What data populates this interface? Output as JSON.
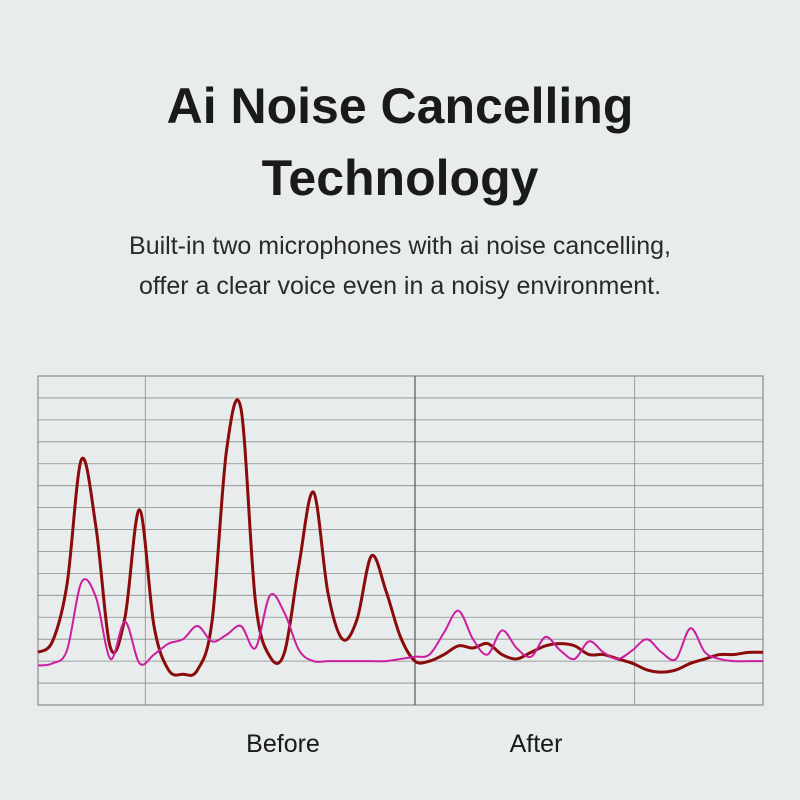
{
  "title_line1": "Ai Noise Cancelling",
  "title_line2": "Technology",
  "subtitle_line1": "Built-in two microphones with ai noise cancelling,",
  "subtitle_line2": "offer a clear voice even in a noisy environment.",
  "chart_data": {
    "type": "line",
    "title": "",
    "xlabel": "",
    "ylabel": "",
    "sections": [
      "Before",
      "After"
    ],
    "xlim": [
      0,
      100
    ],
    "ylim": [
      0,
      15
    ],
    "grid": true,
    "series": [
      {
        "color": "#8b0a0a",
        "x": [
          0,
          2,
          4,
          6,
          8,
          10,
          12,
          14,
          16,
          18,
          20,
          22,
          24,
          26,
          28,
          30,
          32,
          34,
          36,
          38,
          40,
          42,
          44,
          46,
          48,
          50,
          52,
          54,
          56,
          58,
          60,
          62,
          64,
          66,
          68,
          70,
          72,
          74,
          76,
          78,
          80,
          82,
          84,
          86,
          88,
          90,
          92,
          94,
          96,
          98,
          100
        ],
        "values": [
          2.4,
          2.9,
          5.5,
          11.2,
          8.1,
          2.6,
          4.0,
          8.9,
          3.6,
          1.6,
          1.4,
          1.6,
          3.8,
          11.6,
          13.5,
          4.7,
          2.2,
          2.4,
          6.4,
          9.7,
          5.1,
          3.0,
          3.9,
          6.8,
          5.2,
          3.1,
          2.0,
          2.0,
          2.3,
          2.7,
          2.6,
          2.8,
          2.3,
          2.1,
          2.4,
          2.7,
          2.8,
          2.7,
          2.3,
          2.3,
          2.1,
          1.9,
          1.6,
          1.5,
          1.6,
          1.9,
          2.1,
          2.3,
          2.3,
          2.4,
          2.4
        ]
      },
      {
        "color": "#cc1f9f",
        "x": [
          0,
          2,
          4,
          6,
          8,
          10,
          12,
          14,
          16,
          18,
          20,
          22,
          24,
          26,
          28,
          30,
          32,
          34,
          36,
          38,
          40,
          42,
          44,
          46,
          48,
          50,
          52,
          54,
          56,
          58,
          60,
          62,
          64,
          66,
          68,
          70,
          72,
          74,
          76,
          78,
          80,
          82,
          84,
          86,
          88,
          90,
          92,
          94,
          96,
          98,
          100
        ],
        "values": [
          1.8,
          1.9,
          2.5,
          5.6,
          4.9,
          2.1,
          3.8,
          1.9,
          2.3,
          2.8,
          3.0,
          3.6,
          2.9,
          3.2,
          3.6,
          2.6,
          5.0,
          4.2,
          2.5,
          2.0,
          2.0,
          2.0,
          2.0,
          2.0,
          2.0,
          2.1,
          2.2,
          2.3,
          3.3,
          4.3,
          3.0,
          2.3,
          3.4,
          2.6,
          2.2,
          3.1,
          2.5,
          2.1,
          2.9,
          2.4,
          2.1,
          2.5,
          3.0,
          2.4,
          2.1,
          3.5,
          2.4,
          2.1,
          2.0,
          2.0,
          2.0
        ]
      }
    ]
  }
}
